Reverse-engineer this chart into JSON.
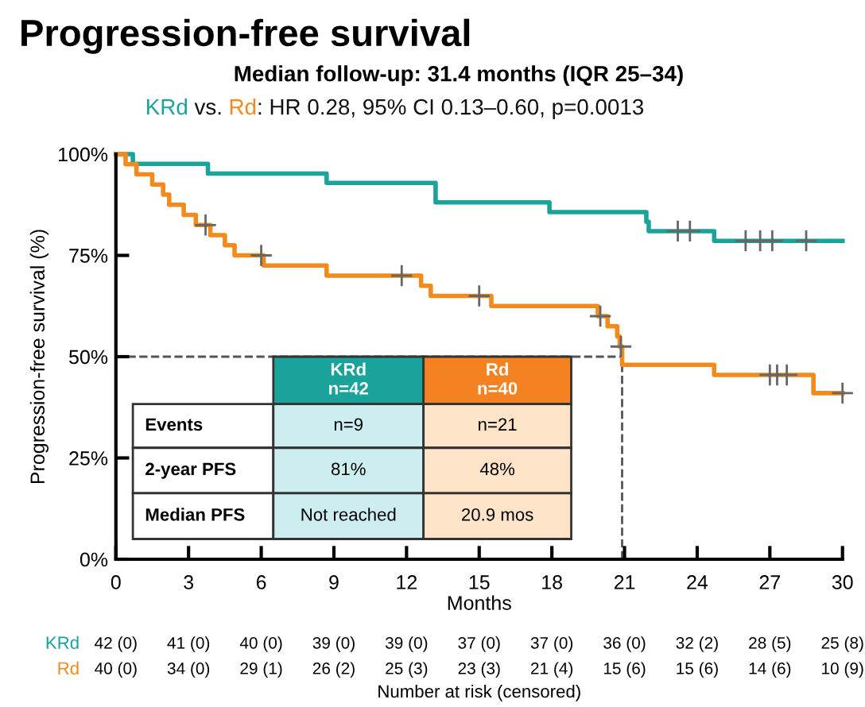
{
  "chart_data": {
    "type": "step",
    "title": "Progression-free survival",
    "subtitle": "Median follow-up: 31.4 months (IQR 25–34)",
    "xlabel": "Months",
    "ylabel": "Progression-free survival (%)",
    "xlim": [
      0,
      30
    ],
    "xticks": [
      0,
      3,
      6,
      9,
      12,
      15,
      18,
      21,
      24,
      27,
      30
    ],
    "ylim": [
      0,
      100
    ],
    "yticks": [
      {
        "value": 0,
        "label": "0%"
      },
      {
        "value": 25,
        "label": "25%"
      },
      {
        "value": 50,
        "label": "50%"
      },
      {
        "value": 75,
        "label": "75%"
      },
      {
        "value": 100,
        "label": "100%"
      }
    ],
    "grid": false,
    "legend": false,
    "series": [
      {
        "name": "KRd",
        "color": "#1aa39a",
        "x": [
          0,
          0.7,
          3.8,
          8.7,
          13.2,
          17.9,
          21.9,
          22.0,
          24.7,
          30
        ],
        "values": [
          100,
          97.6,
          95.2,
          92.9,
          88.1,
          85.7,
          83.3,
          81.0,
          78.6,
          78.6
        ]
      },
      {
        "name": "Rd",
        "color": "#f28a1c",
        "x": [
          0,
          0.4,
          0.85,
          1.5,
          1.95,
          2.2,
          2.8,
          3.3,
          3.9,
          4.5,
          4.9,
          6.1,
          8.7,
          12.6,
          13.0,
          15.5,
          19.9,
          20.3,
          20.7,
          20.8,
          20.9,
          24.7,
          28.8,
          30
        ],
        "values": [
          100,
          97.5,
          95,
          92.5,
          90,
          87.5,
          85,
          82.5,
          80,
          77.5,
          75,
          72.5,
          70,
          67.5,
          65,
          62.5,
          60,
          57.5,
          55,
          52.5,
          48,
          45.5,
          41,
          41
        ]
      },
      {
        "type": "scatter",
        "marker": "cross",
        "color": "#666666",
        "x": [
          23.2,
          23.7,
          26.0,
          26.6,
          27.1,
          28.5
        ],
        "values": [
          81,
          81,
          78.6,
          78.6,
          78.6,
          78.6
        ]
      },
      {
        "type": "scatter",
        "marker": "cross",
        "color": "#666666",
        "x": [
          3.7,
          6.0,
          11.8,
          15.0,
          20.0,
          20.85,
          27.0,
          27.3,
          27.7,
          30
        ],
        "values": [
          82.5,
          75,
          70,
          65,
          60,
          52.5,
          45.5,
          45.5,
          45.5,
          41
        ]
      }
    ],
    "ref_lines": [
      {
        "axis": "y",
        "value": 50,
        "color": "#555555",
        "line_style": "dashed"
      },
      {
        "axis": "x",
        "value": 20.9,
        "color": "#555555",
        "line_style": "dashed"
      }
    ],
    "annotations": [
      "KRd vs. Rd: HR 0.28, 95% CI 0.13–0.60, p=0.0013",
      "KRd\nn=42",
      "Rd\nn=40",
      "Events",
      "n=9",
      "n=21",
      "2-year PFS",
      "81%",
      "48%",
      "Median PFS",
      "Not reached",
      "20.9 mos",
      "42 (0)",
      "41 (0)",
      "40 (0)",
      "39 (0)",
      "39 (0)",
      "37 (0)",
      "37 (0)",
      "36 (0)",
      "32 (2)",
      "28 (5)",
      "25 (8)",
      "40 (0)",
      "34 (0)",
      "29 (1)",
      "26 (2)",
      "25 (3)",
      "23 (3)",
      "21 (4)",
      "15 (6)",
      "15 (6)",
      "14 (6)",
      "10 (9)",
      "Number at risk (censored)"
    ]
  }
}
